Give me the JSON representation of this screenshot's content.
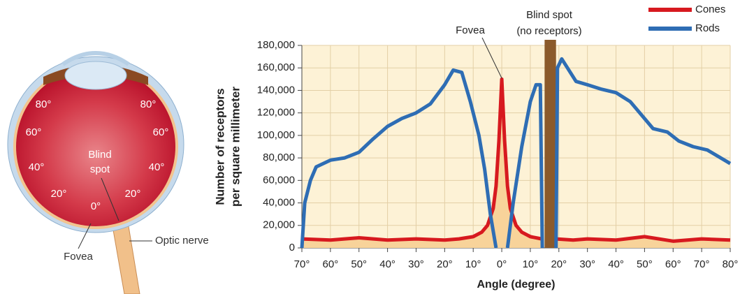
{
  "eye_diagram": {
    "labels": {
      "left_80": "80°",
      "right_80": "80°",
      "left_60": "60°",
      "right_60": "60°",
      "left_40": "40°",
      "right_40": "40°",
      "left_20": "20°",
      "right_20": "20°",
      "center_0": "0°",
      "blind_line1": "Blind",
      "blind_line2": "spot",
      "fovea": "Fovea",
      "optic_nerve": "Optic nerve"
    }
  },
  "chart_data": {
    "type": "line",
    "y_label_lines": [
      "Number of receptors",
      "per square millimeter"
    ],
    "x_label": "Angle (degree)",
    "annotations": {
      "fovea": "Fovea",
      "blind_spot_line1": "Blind spot",
      "blind_spot_line2": "(no receptors)"
    },
    "blind_spot_range": [
      15,
      19
    ],
    "blind_spot_color": "#8b5a2b",
    "xlim": [
      -70,
      80
    ],
    "xticks": [
      {
        "value": -70,
        "label": "70°"
      },
      {
        "value": -60,
        "label": "60°"
      },
      {
        "value": -50,
        "label": "50°"
      },
      {
        "value": -40,
        "label": "40°"
      },
      {
        "value": -30,
        "label": "30°"
      },
      {
        "value": -20,
        "label": "20°"
      },
      {
        "value": -10,
        "label": "10°"
      },
      {
        "value": 0,
        "label": "0°"
      },
      {
        "value": 10,
        "label": "10°"
      },
      {
        "value": 20,
        "label": "20°"
      },
      {
        "value": 30,
        "label": "30°"
      },
      {
        "value": 40,
        "label": "40°"
      },
      {
        "value": 50,
        "label": "50°"
      },
      {
        "value": 60,
        "label": "60°"
      },
      {
        "value": 70,
        "label": "70°"
      },
      {
        "value": 80,
        "label": "80°"
      }
    ],
    "ylim": [
      0,
      180000
    ],
    "yticks": [
      0,
      {
        "value": 20000,
        "label": "20,000"
      },
      {
        "value": 40000,
        "label": "40,000"
      },
      {
        "value": 60000,
        "label": "60,000"
      },
      {
        "value": 80000,
        "label": "80,000"
      },
      {
        "value": 100000,
        "label": "100,000"
      },
      {
        "value": 120000,
        "label": "120,000"
      },
      {
        "value": 140000,
        "label": "140,000"
      },
      {
        "value": 160000,
        "label": "160,000"
      },
      {
        "value": 180000,
        "label": "180,000"
      }
    ],
    "grid": true,
    "legend": "top-right",
    "series": [
      {
        "name": "Cones",
        "color": "#d7191f",
        "fill_color": "#f8d39a",
        "x": [
          -70,
          -60,
          -50,
          -40,
          -30,
          -20,
          -15,
          -10,
          -7,
          -5,
          -3,
          -2,
          -1,
          0,
          1,
          2,
          3,
          5,
          7,
          10,
          14,
          16.5,
          19,
          25,
          30,
          40,
          50,
          60,
          70,
          80
        ],
        "values": [
          8000,
          7000,
          9000,
          7000,
          8000,
          7000,
          8000,
          10000,
          14000,
          20000,
          35000,
          55000,
          95000,
          150000,
          95000,
          55000,
          35000,
          20000,
          14000,
          10000,
          8000,
          null,
          8000,
          7000,
          8000,
          7000,
          10000,
          6000,
          8000,
          7000
        ]
      },
      {
        "name": "Rods",
        "color": "#2e6db4",
        "x": [
          -70,
          -69,
          -67,
          -65,
          -60,
          -55,
          -50,
          -45,
          -40,
          -35,
          -30,
          -25,
          -20,
          -17,
          -14,
          -11,
          -8,
          -6,
          -4,
          -2,
          0,
          2,
          4,
          7,
          10,
          12,
          13.5,
          14.2,
          16.5,
          19,
          19.5,
          21,
          23,
          26,
          30,
          35,
          40,
          45,
          50,
          53,
          58,
          62,
          67,
          72,
          80
        ],
        "values": [
          0,
          40000,
          60000,
          72000,
          78000,
          80000,
          85000,
          97000,
          108000,
          115000,
          120000,
          128000,
          145000,
          158000,
          156000,
          130000,
          100000,
          70000,
          30000,
          0,
          null,
          0,
          40000,
          90000,
          130000,
          145000,
          145000,
          0,
          null,
          0,
          160000,
          168000,
          160000,
          148000,
          145000,
          141000,
          138000,
          130000,
          115000,
          106000,
          103000,
          95000,
          90000,
          87000,
          75000
        ]
      }
    ]
  }
}
